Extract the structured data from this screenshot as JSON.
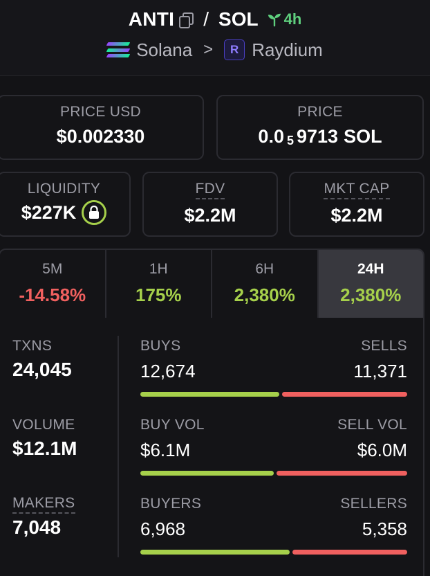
{
  "header": {
    "base_token": "ANTI",
    "separator": "/",
    "quote_token": "SOL",
    "age": "4h",
    "chain": "Solana",
    "dex": "Raydium",
    "dex_icon_letter": "R"
  },
  "price_usd": {
    "label": "PRICE USD",
    "value": "$0.002330"
  },
  "price_native": {
    "label": "PRICE",
    "prefix": "0.0",
    "subscript": "5",
    "digits": "9713",
    "unit": "SOL"
  },
  "liquidity": {
    "label": "LIQUIDITY",
    "value": "$227K"
  },
  "fdv": {
    "label": "FDV",
    "value": "$2.2M"
  },
  "mkt_cap": {
    "label": "MKT CAP",
    "value": "$2.2M"
  },
  "timeframes": [
    {
      "label": "5M",
      "value": "-14.58%",
      "trend": "negative"
    },
    {
      "label": "1H",
      "value": "175%",
      "trend": "positive"
    },
    {
      "label": "6H",
      "value": "2,380%",
      "trend": "positive"
    },
    {
      "label": "24H",
      "value": "2,380%",
      "trend": "positive",
      "active": true
    }
  ],
  "stats": {
    "txns": {
      "label": "TXNS",
      "value": "24,045"
    },
    "volume": {
      "label": "VOLUME",
      "value": "$12.1M"
    },
    "makers": {
      "label": "MAKERS",
      "value": "7,048"
    },
    "buys_sells": {
      "left_label": "BUYS",
      "right_label": "SELLS",
      "left_value": "12,674",
      "right_value": "11,371",
      "buy_fraction": 0.527
    },
    "buy_sell_vol": {
      "left_label": "BUY VOL",
      "right_label": "SELL VOL",
      "left_value": "$6.1M",
      "right_value": "$6.0M",
      "buy_fraction": 0.504
    },
    "buyers_sellers": {
      "left_label": "BUYERS",
      "right_label": "SELLERS",
      "left_value": "6,968",
      "right_value": "5,358",
      "buy_fraction": 0.565
    }
  },
  "colors": {
    "positive": "#a6d04b",
    "negative": "#f0605f",
    "accent_green": "#5fd07e"
  }
}
